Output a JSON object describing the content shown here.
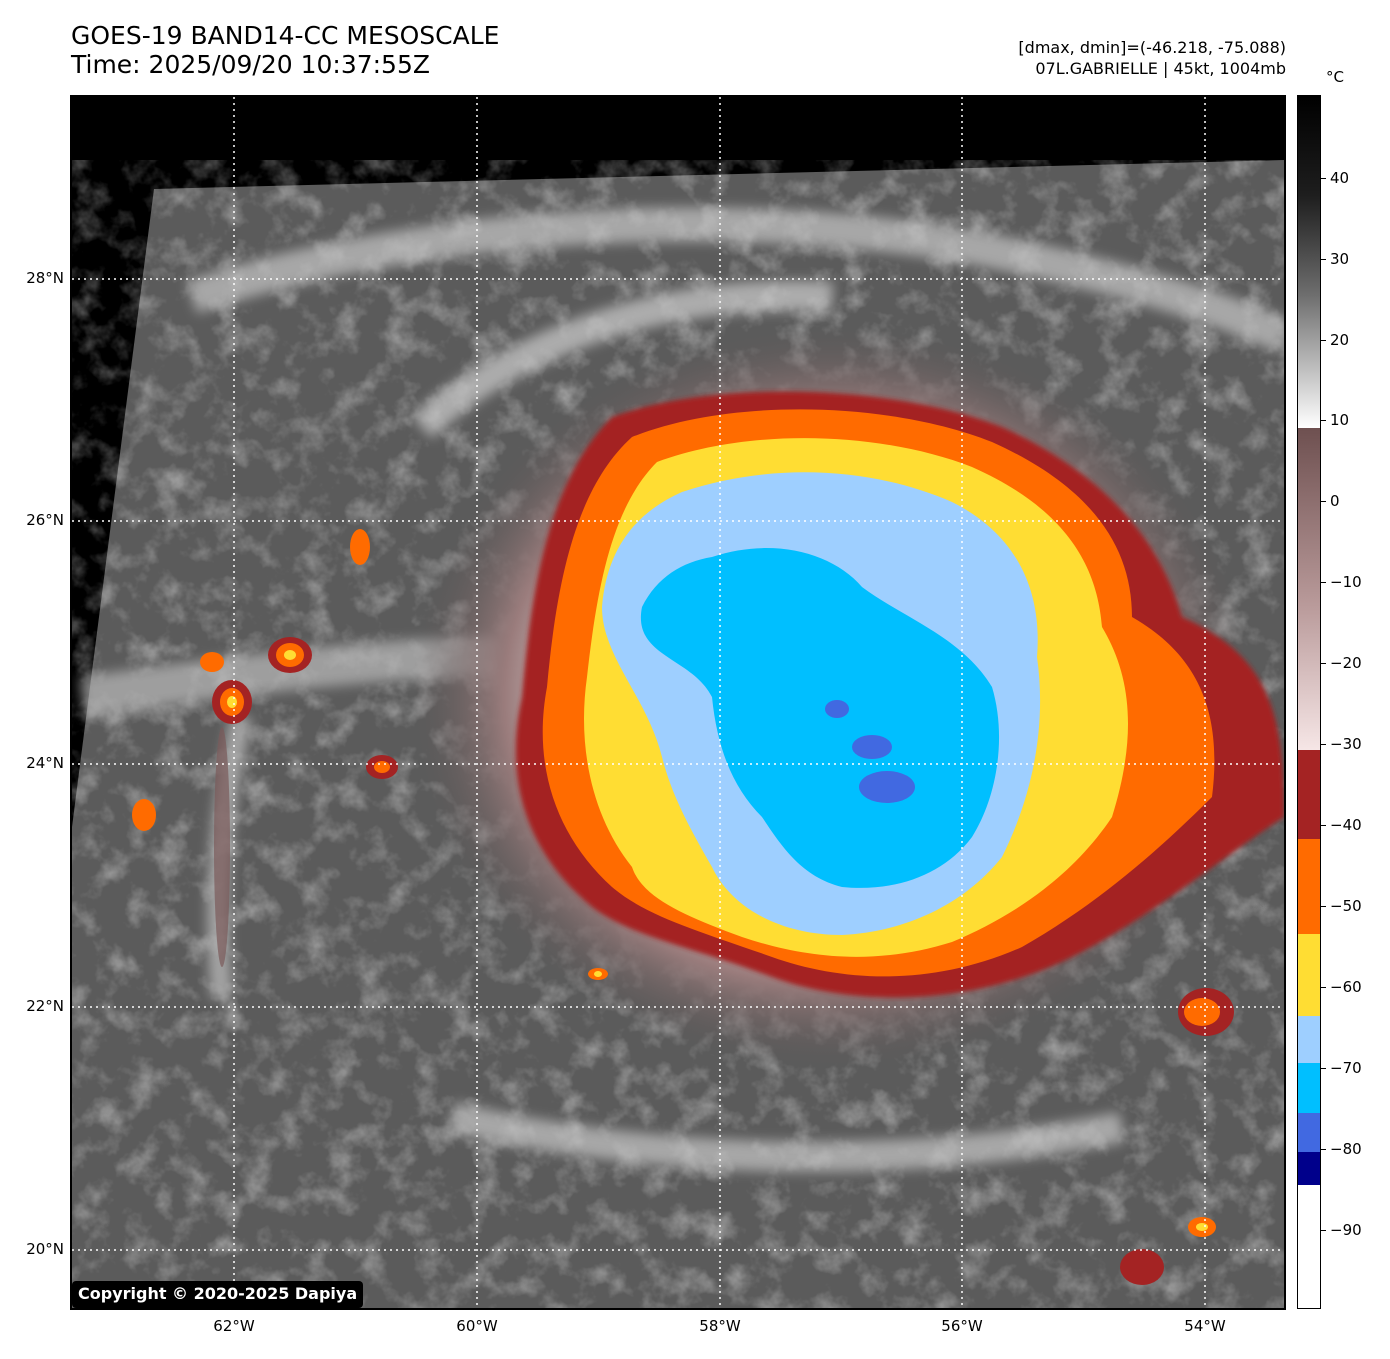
{
  "header": {
    "title_line1": "GOES-19 BAND14-CC MESOSCALE",
    "title_line2": "Time: 2025/09/20 10:37:55Z",
    "info_line1": "[dmax, dmin]=(-46.218, -75.088)",
    "info_line2": "07L.GABRIELLE | 45kt, 1004mb"
  },
  "map": {
    "lat_labels": [
      "28°N",
      "26°N",
      "24°N",
      "22°N",
      "20°N"
    ],
    "lon_labels": [
      "62°W",
      "60°W",
      "58°W",
      "56°W",
      "54°W"
    ],
    "copyright": "Copyright © 2020-2025 Dapiya"
  },
  "colorbar": {
    "unit": "°C",
    "ticks": [
      "40",
      "30",
      "20",
      "10",
      "0",
      "−10",
      "−20",
      "−30",
      "−40",
      "−50",
      "−60",
      "−70",
      "−80",
      "−90"
    ],
    "colors": {
      "minus30_to_minus40": "#a42323",
      "minus40_to_minus52": "#ff6b00",
      "minus52_to_minus62": "#ffdd33",
      "minus62_to_minus72": "#9ecfff",
      "minus72_to_minus80": "#00bfff",
      "minus80_to_minus84": "#4169e1",
      "minus84_to_minus88": "#00008b"
    }
  }
}
